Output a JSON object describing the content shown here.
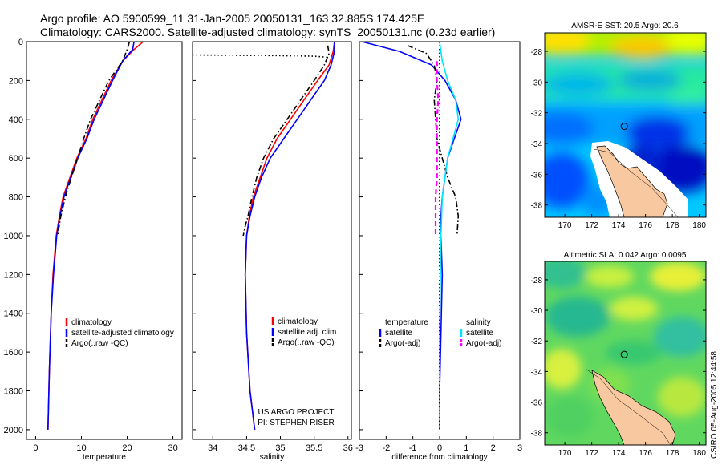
{
  "header": {
    "line1": "Argo profile: AO 5900599_11 31-Jan-2005 20050131_163 32.885S 174.425E",
    "line2": "Climatology: CARS2000. Satellite-adjusted climatology: synTS_20050131.nc (0.23d earlier)"
  },
  "colors": {
    "climatology": "#ff0000",
    "satellite": "#0000ff",
    "argo": "#000000",
    "sal_satellite": "#00e5ff",
    "sal_argo": "#ff00ff"
  },
  "chart_data": [
    {
      "type": "line",
      "id": "temperature",
      "xlabel": "temperature",
      "ylabel": "",
      "xlim": [
        -2,
        32
      ],
      "ylim": [
        2050,
        0
      ],
      "xticks": [
        0,
        10,
        20,
        30
      ],
      "yticks": [
        0,
        200,
        400,
        600,
        800,
        1000,
        1200,
        1400,
        1600,
        1800,
        2000
      ],
      "legend_placement": "lower-right",
      "series": [
        {
          "name": "climatology",
          "color_key": "climatology",
          "style": "solid",
          "x": [
            23.5,
            21.5,
            19.0,
            16.5,
            14.5,
            12.5,
            11.0,
            9.0,
            7.5,
            6.0,
            5.2,
            4.5,
            3.8,
            3.4,
            3.0,
            2.7
          ],
          "y": [
            0,
            40,
            100,
            200,
            300,
            400,
            500,
            600,
            700,
            800,
            900,
            1000,
            1200,
            1400,
            1700,
            2000
          ]
        },
        {
          "name": "satellite-adjusted climatology",
          "color_key": "satellite",
          "style": "solid",
          "x": [
            21.5,
            21.2,
            19.0,
            16.8,
            14.8,
            12.8,
            11.2,
            9.2,
            7.7,
            6.2,
            5.3,
            4.6,
            3.9,
            3.4,
            3.0,
            2.7
          ],
          "y": [
            0,
            40,
            100,
            200,
            300,
            400,
            500,
            600,
            700,
            800,
            900,
            1000,
            1200,
            1400,
            1700,
            2000
          ]
        },
        {
          "name": "Argo(..raw -QC)",
          "color_key": "argo",
          "style": "dashdot",
          "x": [
            20.5,
            20.0,
            19.0,
            16.0,
            14.0,
            12.0,
            10.5,
            9.2,
            7.8,
            6.5,
            5.5,
            4.8
          ],
          "y": [
            0,
            40,
            100,
            200,
            300,
            400,
            500,
            600,
            700,
            800,
            900,
            1000
          ]
        }
      ],
      "legend": [
        "climatology",
        "satellite-adjusted climatology",
        "Argo(..raw -QC)"
      ]
    },
    {
      "type": "line",
      "id": "salinity",
      "xlabel": "salinity",
      "ylabel": "",
      "xlim": [
        33.7,
        36.05
      ],
      "ylim": [
        2050,
        0
      ],
      "xticks": [
        34,
        34.5,
        35,
        35.5,
        36
      ],
      "xticklabels": [
        "34",
        "34.5",
        "35",
        "35.5",
        "36"
      ],
      "legend_placement": "lower-right",
      "annotation": [
        "US ARGO PROJECT",
        "PI: STEPHEN RISER"
      ],
      "series": [
        {
          "name": "climatology",
          "color_key": "climatology",
          "style": "solid",
          "x": [
            35.8,
            35.78,
            35.72,
            35.55,
            35.35,
            35.15,
            34.95,
            34.8,
            34.7,
            34.6,
            34.54,
            34.5,
            34.48,
            34.5,
            34.55,
            34.62
          ],
          "y": [
            0,
            50,
            120,
            200,
            300,
            400,
            500,
            600,
            700,
            800,
            900,
            1000,
            1200,
            1500,
            1800,
            2000
          ]
        },
        {
          "name": "satellite adj. clim.",
          "color_key": "satellite",
          "style": "solid",
          "x": [
            35.8,
            35.8,
            35.75,
            35.65,
            35.45,
            35.25,
            35.05,
            34.85,
            34.72,
            34.62,
            34.55,
            34.5,
            34.48,
            34.5,
            34.55,
            34.62
          ],
          "y": [
            0,
            50,
            120,
            200,
            300,
            400,
            500,
            600,
            700,
            800,
            900,
            1000,
            1200,
            1500,
            1800,
            2000
          ]
        },
        {
          "name": "Argo(..raw -QC)",
          "color_key": "argo",
          "style": "dashdot",
          "x": [
            35.7,
            35.72,
            35.65,
            35.5,
            35.3,
            35.1,
            34.9,
            34.75,
            34.65,
            34.58,
            34.52,
            34.48,
            34.45
          ],
          "y": [
            20,
            60,
            120,
            200,
            300,
            400,
            500,
            600,
            700,
            800,
            900,
            950,
            1000
          ]
        },
        {
          "name": "",
          "color_key": "argo",
          "style": "dotted",
          "x": [
            33.7,
            34.3,
            35.0,
            35.5,
            35.7
          ],
          "y": [
            68,
            70,
            72,
            75,
            80
          ]
        }
      ],
      "legend": [
        "climatology",
        "satellite adj. clim.",
        "Argo(..raw -QC)"
      ]
    },
    {
      "type": "line",
      "id": "difference",
      "xlabel": "difference from climatology",
      "ylabel": "",
      "xlim": [
        -3,
        3
      ],
      "ylim": [
        2050,
        0
      ],
      "xticks": [
        -3,
        -2,
        -1,
        0,
        1,
        2,
        3
      ],
      "legend_placement": "lower",
      "series": [
        {
          "name": "satellite",
          "group": "temperature",
          "color_key": "satellite",
          "style": "solid",
          "x": [
            -2.9,
            -1.5,
            -0.3,
            0.2,
            0.6,
            0.8,
            0.55,
            0.3,
            0.2,
            0.1,
            0.05,
            0.05,
            0.1,
            0.05,
            0.0,
            0.0
          ],
          "y": [
            0,
            50,
            120,
            200,
            300,
            400,
            500,
            600,
            700,
            800,
            900,
            1000,
            1200,
            1500,
            1800,
            2000
          ]
        },
        {
          "name": "Argo(-adj)",
          "group": "temperature",
          "color_key": "argo",
          "style": "dashdot",
          "x": [
            -1.2,
            -0.5,
            -0.2,
            -0.1,
            -0.2,
            -0.15,
            -0.1,
            0.1,
            0.3,
            0.6,
            0.7,
            0.65
          ],
          "y": [
            20,
            60,
            120,
            200,
            300,
            400,
            500,
            600,
            700,
            800,
            900,
            1000
          ]
        },
        {
          "name": "satellite",
          "group": "salinity",
          "color_key": "sal_satellite",
          "style": "solid",
          "x": [
            0.0,
            0.1,
            0.3,
            0.6,
            0.7,
            0.5,
            0.3,
            0.2,
            0.1,
            0.05,
            0.0,
            0.0
          ],
          "y": [
            0,
            100,
            200,
            300,
            400,
            500,
            600,
            700,
            800,
            1000,
            1500,
            2000
          ]
        },
        {
          "name": "Argo(-adj)",
          "group": "salinity",
          "color_key": "sal_argo",
          "style": "dashed",
          "x": [
            -0.1,
            -0.1,
            -0.05,
            -0.1,
            -0.1,
            -0.1,
            -0.1,
            -0.15,
            -0.15,
            -0.15
          ],
          "y": [
            100,
            200,
            300,
            400,
            500,
            600,
            700,
            800,
            900,
            1000
          ]
        },
        {
          "name": "",
          "color_key": "argo",
          "style": "dotted",
          "x": [
            0,
            0
          ],
          "y": [
            0,
            2000
          ]
        }
      ],
      "legend_groups": [
        {
          "title": "temperature",
          "items": [
            {
              "label": "satellite",
              "color_key": "satellite",
              "style": "solid"
            },
            {
              "label": "Argo(-adj)",
              "color_key": "argo",
              "style": "dashdot"
            }
          ]
        },
        {
          "title": "salinity",
          "items": [
            {
              "label": "satellite",
              "color_key": "sal_satellite",
              "style": "solid"
            },
            {
              "label": "Argo(-adj)",
              "color_key": "sal_argo",
              "style": "dashed"
            }
          ]
        }
      ]
    },
    {
      "type": "heatmap",
      "id": "sst-map",
      "title": "AMSR-E SST: 20.5 Argo: 20.6",
      "xlim": [
        168.5,
        180.5
      ],
      "ylim": [
        -38.8,
        -26.8
      ],
      "xticks": [
        170,
        172,
        174,
        176,
        178,
        180
      ],
      "yticks": [
        -28,
        -30,
        -32,
        -34,
        -36,
        -38
      ],
      "marker": {
        "lon": 174.425,
        "lat": -32.885
      }
    },
    {
      "type": "heatmap",
      "id": "sla-map",
      "title": "Altimetric SLA: 0.042 Argo: 0.0095",
      "xlim": [
        168.5,
        180.5
      ],
      "ylim": [
        -38.8,
        -26.8
      ],
      "xticks": [
        170,
        172,
        174,
        176,
        178,
        180
      ],
      "yticks": [
        -28,
        -30,
        -32,
        -34,
        -36,
        -38
      ],
      "marker": {
        "lon": 174.425,
        "lat": -32.885
      }
    }
  ],
  "side_label": "CSIRO 05-Aug-2005 12:44:58"
}
